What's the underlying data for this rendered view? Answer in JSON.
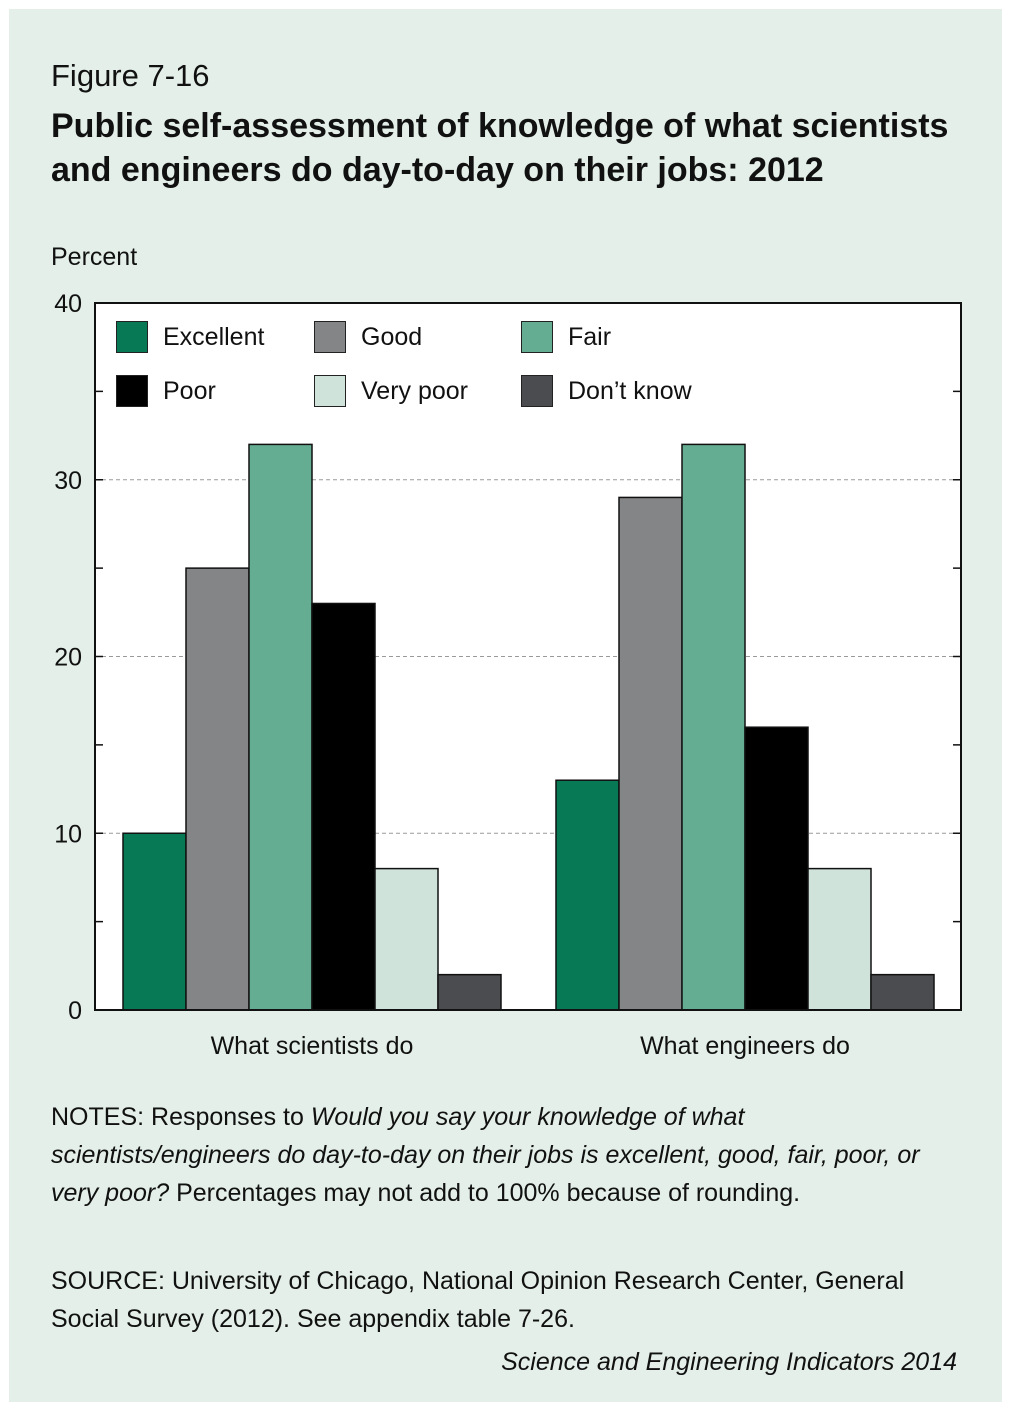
{
  "figure_label": "Figure 7-16",
  "title": "Public self-assessment of knowledge of what scientists and engineers do day-to-day on their jobs: 2012",
  "notes": {
    "prefix": "NOTES: Responses to ",
    "question": "Would you say your knowledge of what scientists/engineers do day-to-day on their jobs is excellent, good, fair, poor, or very poor?",
    "suffix": " Percentages may not add to 100% because of rounding."
  },
  "source": "SOURCE: University of Chicago, National Opinion Research Center, General Social Survey (2012). See appendix table 7-26.",
  "credit": "Science and Engineering Indicators 2014",
  "colors": {
    "excellent": "#077a55",
    "good": "#848586",
    "fair": "#64ad93",
    "poor": "#000000",
    "very_poor": "#cfe3db",
    "dont_know": "#4b4c50",
    "panel": "#e3efe8"
  },
  "chart_data": {
    "type": "bar",
    "title": "Public self-assessment of knowledge of what scientists and engineers do day-to-day on their jobs: 2012",
    "xlabel": "",
    "ylabel": "Percent",
    "ylim": [
      0,
      40
    ],
    "yticks": [
      0,
      10,
      20,
      30,
      40
    ],
    "grid": true,
    "legend_position": "top",
    "categories": [
      "What scientists do",
      "What engineers do"
    ],
    "series": [
      {
        "name": "Excellent",
        "color": "#077a55",
        "values": [
          10,
          13
        ]
      },
      {
        "name": "Good",
        "color": "#848586",
        "values": [
          25,
          29
        ]
      },
      {
        "name": "Fair",
        "color": "#64ad93",
        "values": [
          32,
          32
        ]
      },
      {
        "name": "Poor",
        "color": "#000000",
        "values": [
          23,
          16
        ]
      },
      {
        "name": "Very poor",
        "color": "#cfe3db",
        "values": [
          8,
          8
        ]
      },
      {
        "name": "Don’t know",
        "color": "#4b4c50",
        "values": [
          2,
          2
        ]
      }
    ]
  }
}
